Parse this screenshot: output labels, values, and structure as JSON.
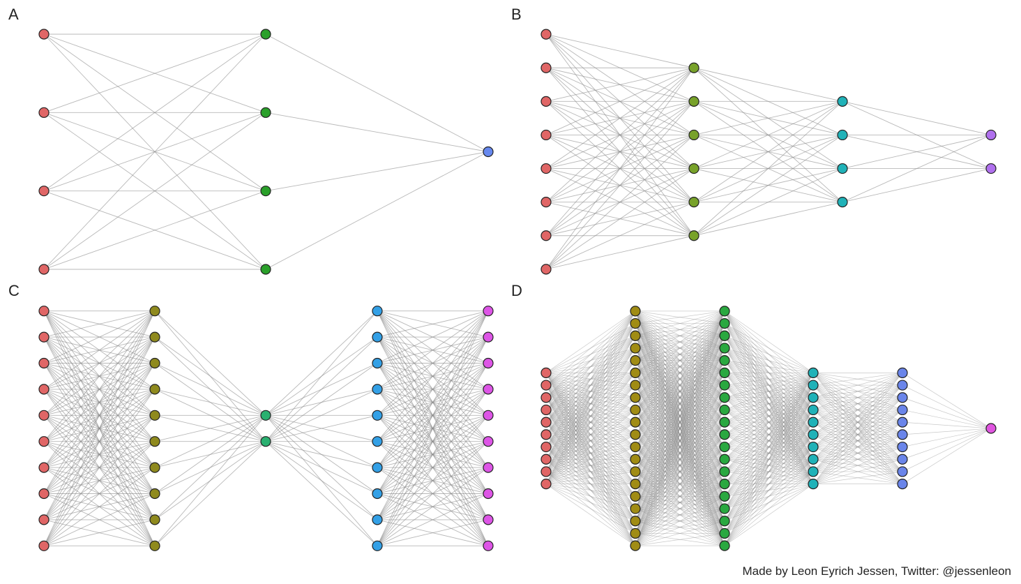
{
  "panels": [
    {
      "label": "A",
      "layers": [
        {
          "count": 4,
          "color": "#e06666"
        },
        {
          "count": 4,
          "color": "#2aa02a"
        },
        {
          "count": 1,
          "color": "#6688ee"
        }
      ]
    },
    {
      "label": "B",
      "layers": [
        {
          "count": 8,
          "color": "#e06666"
        },
        {
          "count": 6,
          "color": "#78a22a"
        },
        {
          "count": 4,
          "color": "#20b2b8"
        },
        {
          "count": 2,
          "color": "#b070ee"
        }
      ]
    },
    {
      "label": "C",
      "layers": [
        {
          "count": 10,
          "color": "#e06666"
        },
        {
          "count": 10,
          "color": "#8f8a1e"
        },
        {
          "count": 2,
          "color": "#2ab070"
        },
        {
          "count": 10,
          "color": "#33a0e6"
        },
        {
          "count": 10,
          "color": "#dd55e6"
        }
      ]
    },
    {
      "label": "D",
      "layers": [
        {
          "count": 10,
          "color": "#e06666"
        },
        {
          "count": 20,
          "color": "#a08c14"
        },
        {
          "count": 20,
          "color": "#2aa840"
        },
        {
          "count": 10,
          "color": "#20b2b8"
        },
        {
          "count": 10,
          "color": "#6a85ea"
        },
        {
          "count": 1,
          "color": "#e055e0"
        }
      ]
    }
  ],
  "credit": "Made by Leon Eyrich Jessen, Twitter: @jessenleon"
}
